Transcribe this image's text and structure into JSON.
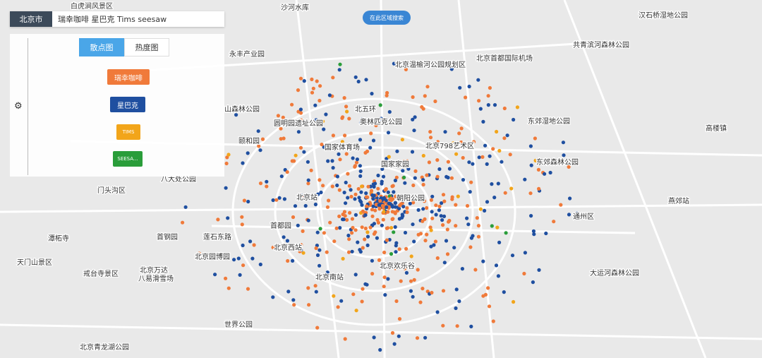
{
  "search": {
    "city": "北京市",
    "query": "瑞幸咖啡 星巴克 Tims seesaw",
    "area_button": "在此区域搜索"
  },
  "view_tabs": [
    "散点图",
    "热度图"
  ],
  "legend": [
    {
      "name": "瑞幸咖啡",
      "color": "#f07a3a"
    },
    {
      "name": "星巴克",
      "color": "#1f4fa0"
    },
    {
      "name": "TIMS",
      "color": "#f2a51a"
    },
    {
      "name": "SEESA...",
      "color": "#2a9d3a"
    }
  ],
  "map_labels": [
    "沙河水库",
    "白虎涧风景区",
    "汉石桥湿地公园",
    "北京温榆河公园规划区",
    "北京首都国际机场",
    "共青滨河森林公园",
    "永丰产业园",
    "山森林公园",
    "圆明园遗址公园",
    "北五环",
    "奥林匹克公园",
    "东郊湿地公园",
    "颐和园",
    "国家体育场",
    "北京798艺术区",
    "东郊森林公园",
    "八大处公园",
    "国家家园",
    "朝阳公园",
    "北京站",
    "首都园",
    "莲石东路",
    "首钢园",
    "北京西站",
    "北京园博园",
    "北京万达",
    "戒台寺景区",
    "八易滑雪场",
    "北京南站",
    "北京欢乐谷",
    "大运河森林公园",
    "世界公园",
    "北京青龙湖公园",
    "潭柘寺",
    "天门山景区",
    "门头沟区",
    "通州区",
    "燕郊站",
    "高楼镇"
  ]
}
